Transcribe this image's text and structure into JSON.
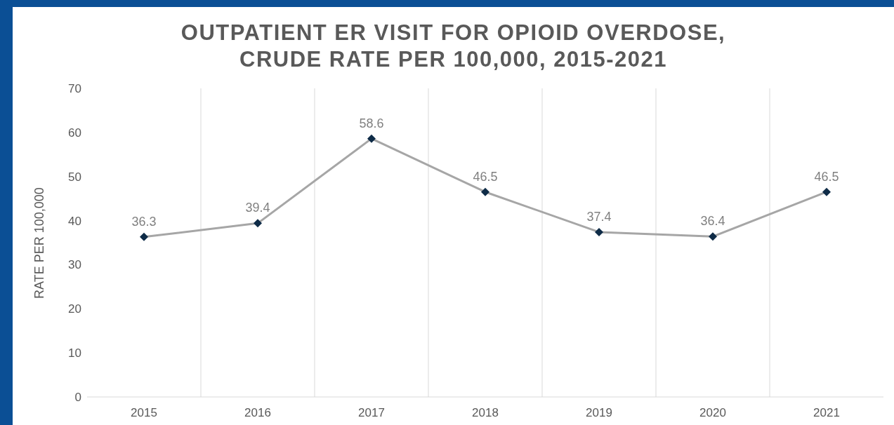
{
  "chart_data": {
    "type": "line",
    "title": "OUTPATIENT ER VISIT FOR OPIOID OVERDOSE, CRUDE RATE PER 100,000, 2015-2021",
    "ylabel": "RATE PER 100,000",
    "categories": [
      "2015",
      "2016",
      "2017",
      "2018",
      "2019",
      "2020",
      "2021"
    ],
    "series": [
      {
        "color": "#a6a6a6",
        "values": [
          36.3,
          39.4,
          58.6,
          46.5,
          37.4,
          36.4,
          46.5
        ]
      }
    ],
    "marker": "diamond",
    "data_labels": true,
    "grid": "x",
    "ylim": [
      0,
      70
    ],
    "yticks": [
      0,
      10,
      20,
      30,
      40,
      50,
      60,
      70
    ]
  }
}
